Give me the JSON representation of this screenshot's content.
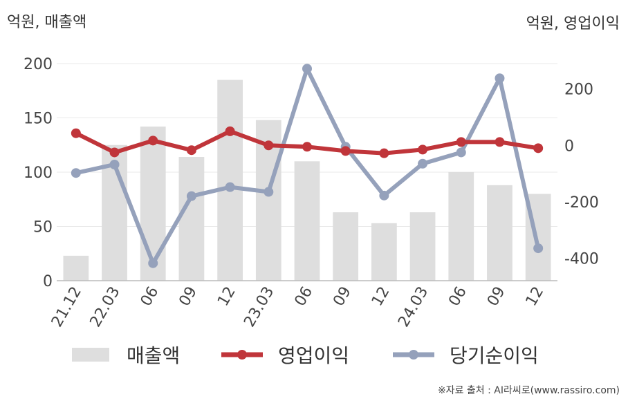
{
  "left_unit_label": "억원, 매출액",
  "right_unit_label": "억원, 영업이익",
  "source_note": "※자료 출처 : AI라씨로(www.rassiro.com)",
  "colors": {
    "revenue": "#dedede",
    "operating_profit": "#c0353a",
    "net_income": "#95a1bb",
    "grid": "#e8e8e8",
    "axis": "#bbbbbb"
  },
  "chart_data": {
    "type": "bar+line",
    "categories": [
      "21.12",
      "22.03",
      "06",
      "09",
      "12",
      "23.03",
      "06",
      "09",
      "12",
      "24.03",
      "06",
      "09",
      "12"
    ],
    "left_axis": {
      "ylim": [
        0,
        200
      ],
      "ticks": [
        0,
        50,
        100,
        150,
        200
      ]
    },
    "right_axis": {
      "ylim": [
        -480,
        290
      ],
      "ticks": [
        -400,
        -200,
        0,
        200
      ]
    },
    "series": [
      {
        "name": "매출액",
        "type": "bar",
        "axis": "left",
        "values": [
          23,
          125,
          142,
          114,
          185,
          148,
          110,
          63,
          53,
          63,
          100,
          88,
          80
        ]
      },
      {
        "name": "영업이익",
        "type": "line",
        "axis": "right",
        "values": [
          43,
          -25,
          17,
          -17,
          50,
          0,
          -5,
          -20,
          -28,
          -15,
          12,
          12,
          -10
        ]
      },
      {
        "name": "당기순이익",
        "type": "line",
        "axis": "right",
        "values": [
          -98,
          -68,
          -418,
          -180,
          -148,
          -165,
          272,
          -5,
          -178,
          -65,
          -25,
          238,
          -365
        ]
      }
    ]
  }
}
